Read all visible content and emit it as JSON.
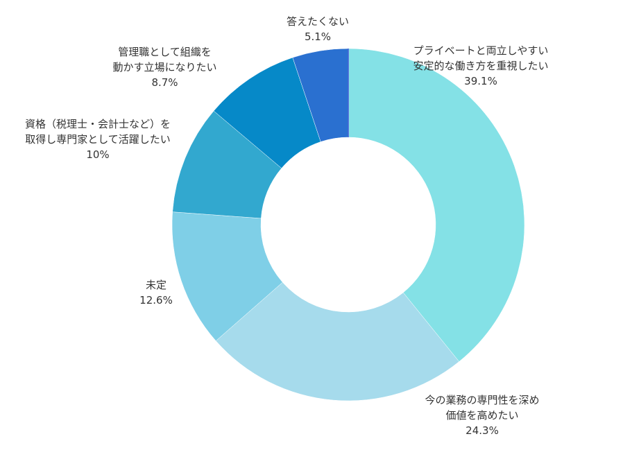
{
  "chart_data": {
    "type": "pie",
    "variant": "donut",
    "title": "",
    "legend": "none",
    "slices": [
      {
        "name": "プライベートと両立しやすい安定的な働き方を重視したい",
        "label_lines": [
          "プライベートと両立しやすい",
          "安定的な働き方を重視したい"
        ],
        "value": 39.1,
        "value_label": "39.1%",
        "color": "#84e1e6"
      },
      {
        "name": "今の業務の専門性を深め価値を高めたい",
        "label_lines": [
          "今の業務の専門性を深め",
          "価値を高めたい"
        ],
        "value": 24.3,
        "value_label": "24.3%",
        "color": "#a6dbec"
      },
      {
        "name": "未定",
        "label_lines": [
          "未定"
        ],
        "value": 12.6,
        "value_label": "12.6%",
        "color": "#7fcfe7"
      },
      {
        "name": "資格（税理士・会計士など）を取得し専門家として活躍したい",
        "label_lines": [
          "資格（税理士・会計士など）を",
          "取得し専門家として活躍したい"
        ],
        "value": 10,
        "value_label": "10%",
        "color": "#32a8cf"
      },
      {
        "name": "管理職として組織を動かす立場になりたい",
        "label_lines": [
          "管理職として組織を",
          "動かす立場になりたい"
        ],
        "value": 8.7,
        "value_label": "8.7%",
        "color": "#0689c8"
      },
      {
        "name": "答えたくない",
        "label_lines": [
          "答えたくない"
        ],
        "value": 5.1,
        "value_label": "5.1%",
        "color": "#2a70d0"
      }
    ]
  }
}
